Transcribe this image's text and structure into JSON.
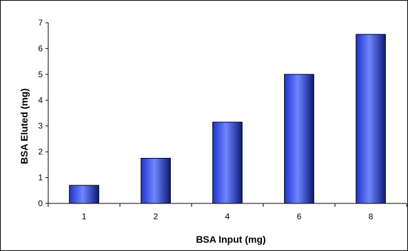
{
  "chart_data": {
    "type": "bar",
    "title": "",
    "xlabel": "BSA Input (mg)",
    "ylabel": "BSA Eluted (mg)",
    "categories": [
      "1",
      "2",
      "4",
      "6",
      "8"
    ],
    "values": [
      0.7,
      1.75,
      3.15,
      5.0,
      6.55
    ],
    "ylim": [
      0,
      7
    ],
    "yticks": [
      "0",
      "1",
      "2",
      "3",
      "4",
      "5",
      "6",
      "7"
    ],
    "grid": false,
    "legend": "none",
    "bar_color": "#1f33cc",
    "bar_highlight": "#6f86ff",
    "bar_shadow": "#0b1a7a"
  }
}
